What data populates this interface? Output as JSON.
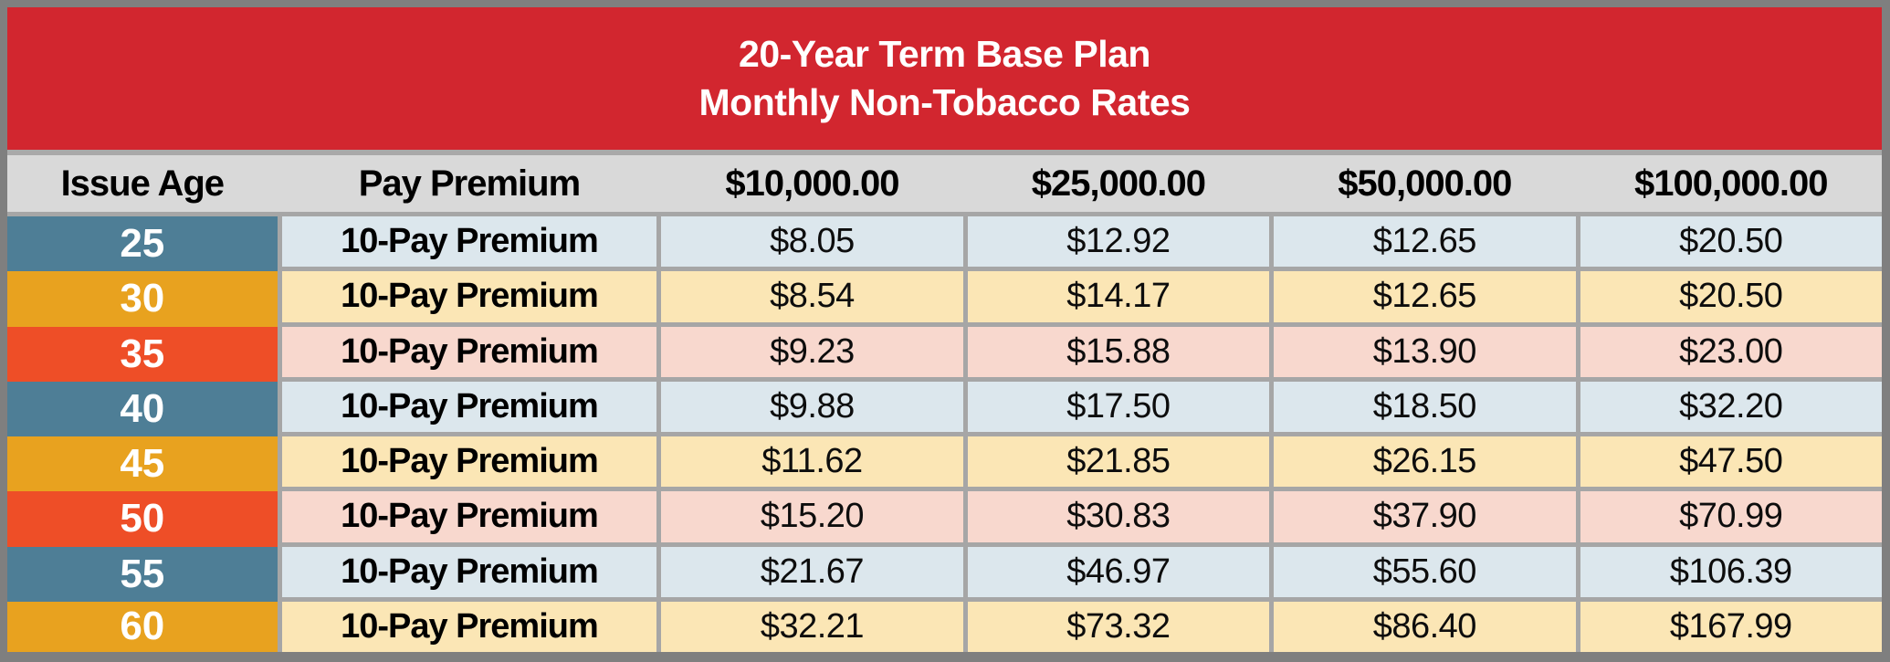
{
  "title": {
    "line1": "20-Year Term Base Plan",
    "line2": "Monthly Non-Tobacco Rates"
  },
  "columns": [
    "Issue Age",
    "Pay Premium",
    "$10,000.00",
    "$25,000.00",
    "$50,000.00",
    "$100,000.00"
  ],
  "rows": [
    {
      "age": "25",
      "premium_type": "10-Pay Premium",
      "theme": "blue",
      "values": [
        "$8.05",
        "$12.92",
        "$12.65",
        "$20.50"
      ]
    },
    {
      "age": "30",
      "premium_type": "10-Pay Premium",
      "theme": "gold",
      "values": [
        "$8.54",
        "$14.17",
        "$12.65",
        "$20.50"
      ]
    },
    {
      "age": "35",
      "premium_type": "10-Pay Premium",
      "theme": "red",
      "values": [
        "$9.23",
        "$15.88",
        "$13.90",
        "$23.00"
      ]
    },
    {
      "age": "40",
      "premium_type": "10-Pay Premium",
      "theme": "blue",
      "values": [
        "$9.88",
        "$17.50",
        "$18.50",
        "$32.20"
      ]
    },
    {
      "age": "45",
      "premium_type": "10-Pay Premium",
      "theme": "gold",
      "values": [
        "$11.62",
        "$21.85",
        "$26.15",
        "$47.50"
      ]
    },
    {
      "age": "50",
      "premium_type": "10-Pay Premium",
      "theme": "red",
      "values": [
        "$15.20",
        "$30.83",
        "$37.90",
        "$70.99"
      ]
    },
    {
      "age": "55",
      "premium_type": "10-Pay Premium",
      "theme": "blue",
      "values": [
        "$21.67",
        "$46.97",
        "$55.60",
        "$106.39"
      ]
    },
    {
      "age": "60",
      "premium_type": "10-Pay Premium",
      "theme": "gold",
      "values": [
        "$32.21",
        "$73.32",
        "$86.40",
        "$167.99"
      ]
    }
  ],
  "colors": {
    "banner-red": "#D2262F",
    "frame-gray": "#7F7F7F",
    "separator-gray": "#A9A9A9",
    "header-bg": "#D9D9D9",
    "grid-gray": "#A6A6A6",
    "age-blue": "#4E7E96",
    "age-gold": "#E8A21F",
    "age-red": "#EE4E27",
    "row-blue": "#DCE7ED",
    "row-gold": "#FBE6B5",
    "row-pink": "#F8D8CE"
  }
}
